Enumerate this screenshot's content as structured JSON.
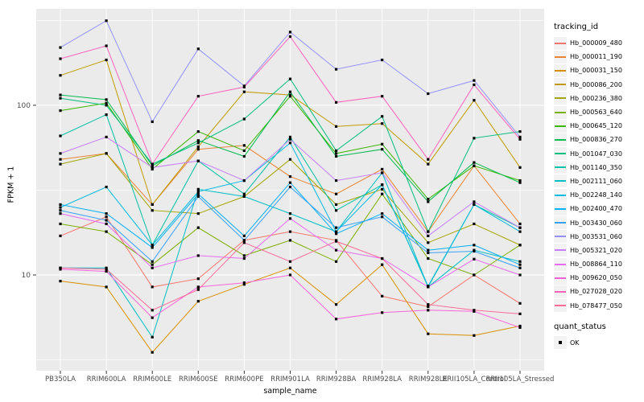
{
  "chart_data": {
    "type": "line",
    "title": "",
    "xlabel": "sample_name",
    "ylabel": "FPKM + 1",
    "y_scale": "log10",
    "ylim": [
      2.73,
      370
    ],
    "y_major_ticks": [
      10,
      100
    ],
    "y_minor_gridlines": [
      3.162,
      31.62,
      316.2
    ],
    "grid": "on",
    "legend_position": "right",
    "legend_title": "tracking_id",
    "point_shape": "filled-square",
    "point_color": "#000000",
    "categories": [
      "PB350LA",
      "RRIM600LA",
      "RRIM600LE",
      "RRIM600SE",
      "RRIM600PE",
      "RRIM901LA",
      "RRIM928BA",
      "RRIM928LA",
      "RRIM928LE",
      "RRII105LA_Control",
      "RRII105LA_Stressed"
    ],
    "series": [
      {
        "name": "Hb_000009_480",
        "color": "#F8766D",
        "values": [
          17,
          22,
          8.5,
          9.5,
          16,
          18,
          16,
          7.5,
          6.5,
          10,
          6.8
        ]
      },
      {
        "name": "Hb_000011_190",
        "color": "#EA8331",
        "values": [
          48,
          52,
          26,
          55,
          58,
          38,
          30,
          42,
          18,
          44,
          20
        ]
      },
      {
        "name": "Hb_000031_150",
        "color": "#D89000",
        "values": [
          9.2,
          8.5,
          3.5,
          7,
          8.8,
          11,
          6.7,
          11.5,
          4.5,
          4.4,
          5
        ]
      },
      {
        "name": "Hb_000086_200",
        "color": "#C09B00",
        "values": [
          150,
          185,
          26,
          57,
          120,
          115,
          75,
          78,
          45,
          107,
          43
        ]
      },
      {
        "name": "Hb_000236_380",
        "color": "#A3A500",
        "values": [
          45,
          52,
          24,
          23,
          29,
          48,
          26,
          32,
          15.5,
          20,
          15
        ]
      },
      {
        "name": "Hb_000563_640",
        "color": "#7CAE00",
        "values": [
          20,
          18,
          11.5,
          19,
          13,
          16,
          12,
          30,
          12.5,
          10,
          15
        ]
      },
      {
        "name": "Hb_000645_120",
        "color": "#39B600",
        "values": [
          93,
          103,
          42,
          70,
          54,
          113,
          52,
          59,
          28,
          44,
          36
        ]
      },
      {
        "name": "Hb_000836_270",
        "color": "#00BB4E",
        "values": [
          115,
          108,
          44,
          62,
          50,
          120,
          50,
          55,
          27,
          46,
          35
        ]
      },
      {
        "name": "Hb_001047_030",
        "color": "#00BF7D",
        "values": [
          110,
          100,
          45,
          60,
          83,
          143,
          54,
          86,
          18,
          64,
          70
        ]
      },
      {
        "name": "Hb_001140_350",
        "color": "#00C1A3",
        "values": [
          66,
          88,
          15,
          47,
          30,
          65,
          24,
          34,
          8.5,
          26,
          19
        ]
      },
      {
        "name": "Hb_002111_060",
        "color": "#00BFC4",
        "values": [
          11,
          11,
          4.3,
          32,
          29,
          23,
          18,
          40,
          8.5,
          14,
          12
        ]
      },
      {
        "name": "Hb_002248_140",
        "color": "#00BAE0",
        "values": [
          25,
          33,
          15,
          31,
          36,
          60,
          18,
          34,
          8.6,
          26,
          18
        ]
      },
      {
        "name": "Hb_002400_470",
        "color": "#00B0F6",
        "values": [
          26,
          23,
          14.5,
          30,
          17,
          35,
          17.5,
          23,
          14,
          15,
          11.5
        ]
      },
      {
        "name": "Hb_003430_060",
        "color": "#35A2FF",
        "values": [
          24,
          21,
          12,
          29,
          16,
          33,
          19,
          22,
          13.5,
          13.8,
          11
        ]
      },
      {
        "name": "Hb_003531_060",
        "color": "#9590FF",
        "values": [
          219,
          315,
          80,
          215,
          130,
          270,
          163,
          185,
          117,
          140,
          65
        ]
      },
      {
        "name": "Hb_005321_020",
        "color": "#C77CFF",
        "values": [
          52,
          65,
          43,
          47,
          36,
          63,
          36,
          40,
          17,
          27,
          19
        ]
      },
      {
        "name": "Hb_008864_110",
        "color": "#E76BF3",
        "values": [
          23,
          20,
          11,
          13,
          12.5,
          21.5,
          14,
          12.5,
          8.5,
          12.4,
          10
        ]
      },
      {
        "name": "Hb_009620_050",
        "color": "#FA62DB",
        "values": [
          10.8,
          10.5,
          5.6,
          8.5,
          9,
          10,
          5.5,
          6,
          6.2,
          6.1,
          4.9
        ]
      },
      {
        "name": "Hb_027028_020",
        "color": "#FF62BC",
        "values": [
          188,
          224,
          45,
          113,
          128,
          254,
          104,
          113,
          48,
          132,
          63
        ]
      },
      {
        "name": "Hb_078477_050",
        "color": "#FF6A98",
        "values": [
          11,
          10.8,
          6.2,
          8.2,
          15.5,
          12,
          15.8,
          12.5,
          6.7,
          6.2,
          5.9
        ]
      }
    ],
    "quant_legend": {
      "title": "quant_status",
      "items": [
        {
          "label": "OK"
        }
      ]
    }
  },
  "theme": {
    "panel_bg": "#EBEBEB",
    "grid_color": "#FFFFFF",
    "axis_text_color": "#4D4D4D",
    "tick_color": "#333333",
    "legend_key_bg": "#F2F2F2",
    "text_color": "#000000"
  }
}
